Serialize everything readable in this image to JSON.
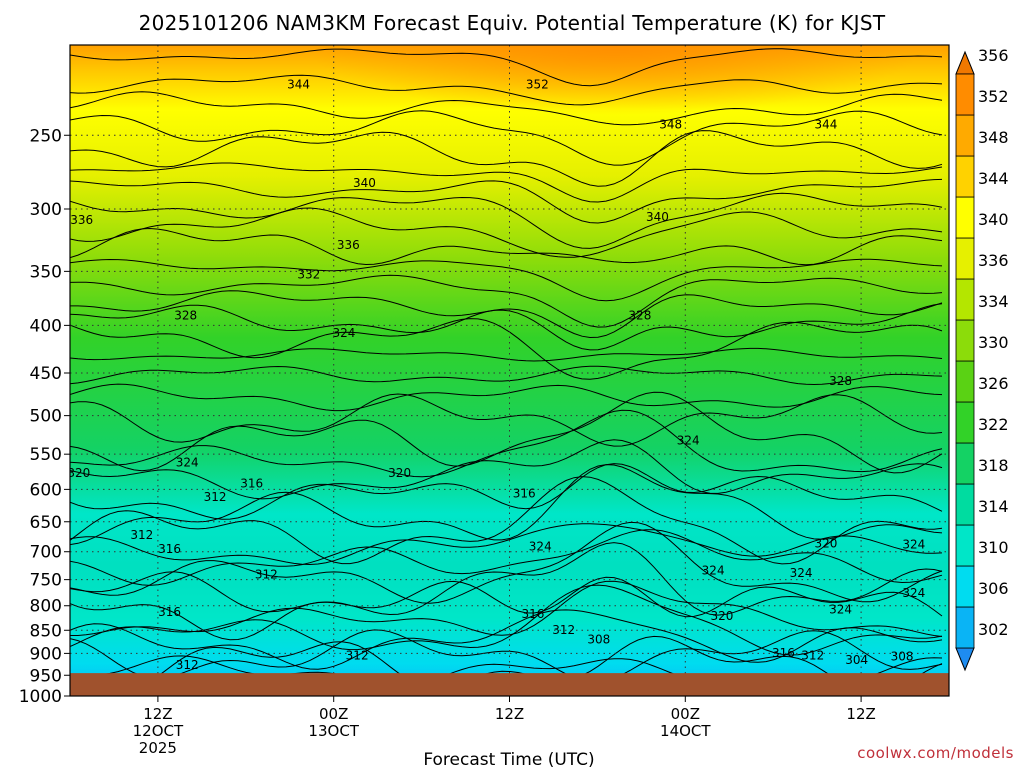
{
  "chart_data": {
    "type": "heatmap",
    "title": "2025101206 NAM3KM Forecast Equiv. Potential Temperature (K) for KJST",
    "xlabel": "Forecast Time (UTC)",
    "ylabel": "",
    "credit": "coolwx.com/models",
    "y_axis": {
      "scale": "log-pressure",
      "ylim": [
        1000,
        200
      ],
      "ticks": [
        250,
        300,
        350,
        400,
        450,
        500,
        550,
        600,
        650,
        700,
        750,
        800,
        850,
        900,
        950,
        1000
      ]
    },
    "x_axis": {
      "xlim_hours": [
        0,
        60
      ],
      "ticks": [
        {
          "hour": 6,
          "label": "12Z",
          "sub1": "12OCT",
          "sub2": "2025"
        },
        {
          "hour": 18,
          "label": "00Z",
          "sub1": "13OCT",
          "sub2": ""
        },
        {
          "hour": 30,
          "label": "12Z",
          "sub1": "",
          "sub2": ""
        },
        {
          "hour": 42,
          "label": "00Z",
          "sub1": "14OCT",
          "sub2": ""
        },
        {
          "hour": 54,
          "label": "12Z",
          "sub1": "",
          "sub2": ""
        }
      ]
    },
    "grid": true,
    "terrain_top_hpa": 945,
    "colorbar": {
      "levels": [
        302,
        306,
        310,
        314,
        318,
        322,
        326,
        330,
        334,
        336,
        340,
        344,
        348,
        352,
        356
      ],
      "colors": [
        "#1e8cf0",
        "#0ab4f5",
        "#00dcf0",
        "#00e6c8",
        "#00dca0",
        "#14d264",
        "#32d228",
        "#5ad214",
        "#8cdc0a",
        "#b4e600",
        "#e6f000",
        "#ffff00",
        "#ffd200",
        "#ffaa00",
        "#ff8c00",
        "#f07800"
      ],
      "labels": [
        302,
        306,
        310,
        314,
        318,
        322,
        326,
        330,
        334,
        336,
        340,
        344,
        348,
        352,
        356
      ]
    },
    "contour_labels": [
      {
        "hour": 15.6,
        "hpa": 222,
        "value": "344"
      },
      {
        "hour": 31.9,
        "hpa": 222,
        "value": "352"
      },
      {
        "hour": 41.0,
        "hpa": 245,
        "value": "348"
      },
      {
        "hour": 51.6,
        "hpa": 245,
        "value": "344"
      },
      {
        "hour": 20.1,
        "hpa": 283,
        "value": "340"
      },
      {
        "hour": 40.1,
        "hpa": 308,
        "value": "340"
      },
      {
        "hour": 0.8,
        "hpa": 310,
        "value": "336"
      },
      {
        "hour": 19.0,
        "hpa": 330,
        "value": "336"
      },
      {
        "hour": 16.3,
        "hpa": 355,
        "value": "332"
      },
      {
        "hour": 7.9,
        "hpa": 393,
        "value": "328"
      },
      {
        "hour": 38.9,
        "hpa": 393,
        "value": "328"
      },
      {
        "hour": 18.7,
        "hpa": 410,
        "value": "324"
      },
      {
        "hour": 52.6,
        "hpa": 462,
        "value": "328"
      },
      {
        "hour": 42.2,
        "hpa": 535,
        "value": "324"
      },
      {
        "hour": 8.0,
        "hpa": 565,
        "value": "324"
      },
      {
        "hour": 0.6,
        "hpa": 580,
        "value": "320"
      },
      {
        "hour": 12.4,
        "hpa": 595,
        "value": "316"
      },
      {
        "hour": 22.5,
        "hpa": 580,
        "value": "320"
      },
      {
        "hour": 31.0,
        "hpa": 610,
        "value": "316"
      },
      {
        "hour": 9.9,
        "hpa": 615,
        "value": "312"
      },
      {
        "hour": 4.9,
        "hpa": 676,
        "value": "312"
      },
      {
        "hour": 6.8,
        "hpa": 700,
        "value": "316"
      },
      {
        "hour": 32.1,
        "hpa": 695,
        "value": "324"
      },
      {
        "hour": 51.6,
        "hpa": 690,
        "value": "320"
      },
      {
        "hour": 57.6,
        "hpa": 692,
        "value": "324"
      },
      {
        "hour": 13.4,
        "hpa": 745,
        "value": "312"
      },
      {
        "hour": 43.9,
        "hpa": 738,
        "value": "324"
      },
      {
        "hour": 49.9,
        "hpa": 742,
        "value": "324"
      },
      {
        "hour": 57.6,
        "hpa": 780,
        "value": "324"
      },
      {
        "hour": 6.8,
        "hpa": 818,
        "value": "316"
      },
      {
        "hour": 31.6,
        "hpa": 822,
        "value": "316"
      },
      {
        "hour": 52.6,
        "hpa": 812,
        "value": "324"
      },
      {
        "hour": 44.5,
        "hpa": 826,
        "value": "320"
      },
      {
        "hour": 33.7,
        "hpa": 855,
        "value": "312"
      },
      {
        "hour": 36.1,
        "hpa": 875,
        "value": "308"
      },
      {
        "hour": 19.6,
        "hpa": 910,
        "value": "312"
      },
      {
        "hour": 48.7,
        "hpa": 905,
        "value": "316"
      },
      {
        "hour": 50.7,
        "hpa": 910,
        "value": "312"
      },
      {
        "hour": 53.7,
        "hpa": 920,
        "value": "304"
      },
      {
        "hour": 56.8,
        "hpa": 913,
        "value": "308"
      },
      {
        "hour": 8.0,
        "hpa": 932,
        "value": "312"
      }
    ]
  }
}
